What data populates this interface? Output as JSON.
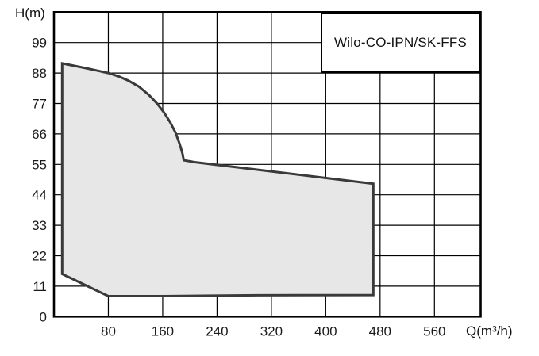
{
  "chart_data": {
    "type": "area",
    "title": "Wilo-CO-IPN/SK-FFS",
    "xlabel": "Q(m³/h)",
    "ylabel": "H(m)",
    "x_ticks": [
      80,
      160,
      240,
      320,
      400,
      480,
      560
    ],
    "y_ticks": [
      0,
      11,
      22,
      33,
      44,
      55,
      66,
      77,
      88,
      99
    ],
    "xlim": [
      0,
      628
    ],
    "ylim": [
      0,
      110
    ],
    "grid": true,
    "legend": "none",
    "colors": {
      "envelope_fill": "#e7e7e7",
      "envelope_stroke": "#3a3a3a",
      "grid_color": "#000000",
      "frame_color": "#000000",
      "text_color": "#1a1a1a"
    },
    "series": [
      {
        "name": "operating-envelope",
        "description": "closed operating range polygon (Q in m3/h, H in m)",
        "points": [
          [
            12,
            91.5
          ],
          [
            30,
            90.6
          ],
          [
            50,
            89.6
          ],
          [
            65,
            88.8
          ],
          [
            80,
            88.0
          ],
          [
            95,
            86.8
          ],
          [
            110,
            85.2
          ],
          [
            125,
            83.1
          ],
          [
            140,
            80.0
          ],
          [
            152,
            76.9
          ],
          [
            162,
            73.7
          ],
          [
            171,
            70.2
          ],
          [
            179,
            66.4
          ],
          [
            185,
            62.4
          ],
          [
            189,
            59.0
          ],
          [
            191,
            56.5
          ],
          [
            207,
            55.8
          ],
          [
            470,
            48.0
          ],
          [
            470,
            7.8
          ],
          [
            300,
            7.7
          ],
          [
            160,
            7.4
          ],
          [
            80,
            7.4
          ],
          [
            12,
            15.4
          ]
        ],
        "closed": true
      }
    ]
  }
}
